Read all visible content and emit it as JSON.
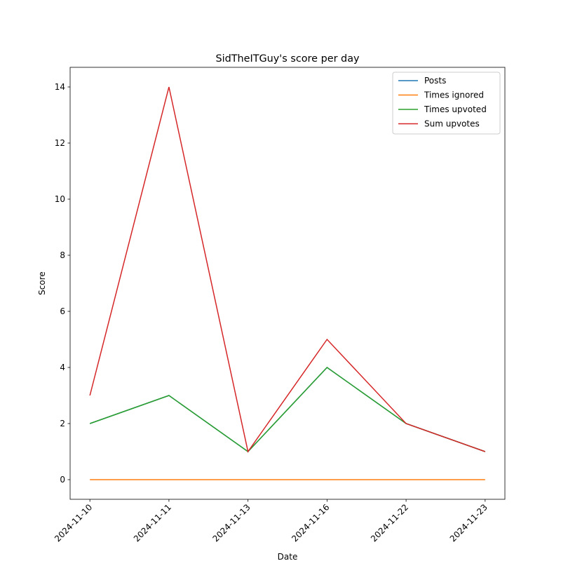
{
  "chart_data": {
    "type": "line",
    "title": "SidTheITGuy's score per day",
    "xlabel": "Date",
    "ylabel": "Score",
    "categories": [
      "2024-11-10",
      "2024-11-11",
      "2024-11-13",
      "2024-11-16",
      "2024-11-22",
      "2024-11-23"
    ],
    "series": [
      {
        "name": "Posts",
        "color": "#1f77b4",
        "values": [
          2,
          3,
          1,
          4,
          2,
          1
        ]
      },
      {
        "name": "Times ignored",
        "color": "#ff7f0e",
        "values": [
          0,
          0,
          0,
          0,
          0,
          0
        ]
      },
      {
        "name": "Times upvoted",
        "color": "#2ca02c",
        "values": [
          2,
          3,
          1,
          4,
          2,
          1
        ]
      },
      {
        "name": "Sum upvotes",
        "color": "#d62728",
        "values": [
          3,
          14,
          1,
          5,
          2,
          1
        ]
      }
    ],
    "ylim": [
      -0.7,
      14.7
    ],
    "yticks": [
      0,
      2,
      4,
      6,
      8,
      10,
      12,
      14
    ],
    "legend": "upper right"
  }
}
